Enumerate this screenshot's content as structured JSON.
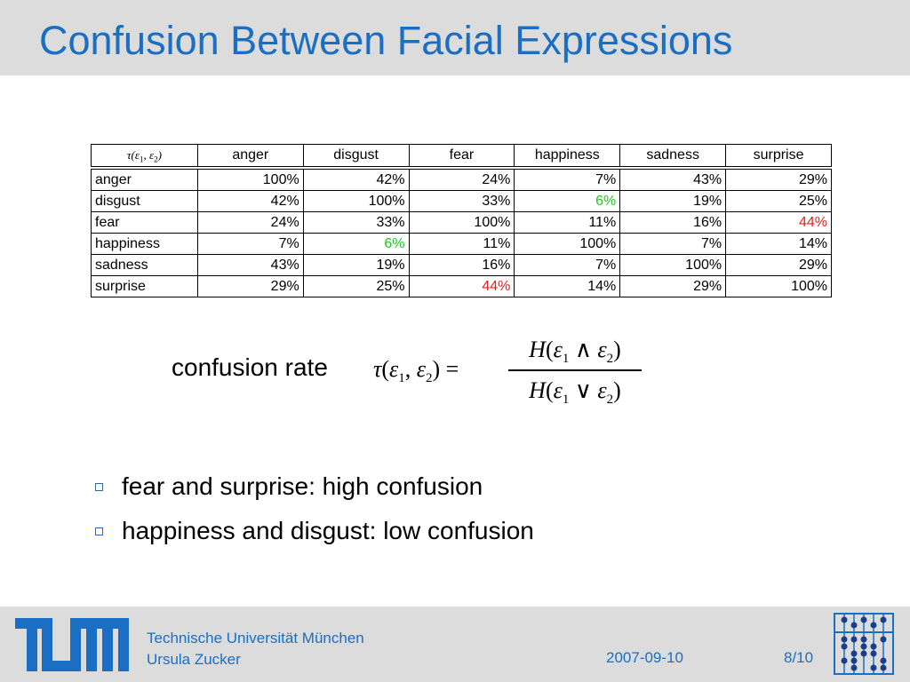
{
  "slide": {
    "title": "Confusion Between Facial Expressions"
  },
  "table": {
    "corner": "τ(ε1, ε2)",
    "columns": [
      "anger",
      "disgust",
      "fear",
      "happiness",
      "sadness",
      "surprise"
    ],
    "rows": [
      {
        "label": "anger",
        "cells": [
          "100%",
          "42%",
          "24%",
          "7%",
          "43%",
          "29%"
        ]
      },
      {
        "label": "disgust",
        "cells": [
          "42%",
          "100%",
          "33%",
          "6%",
          "19%",
          "25%"
        ]
      },
      {
        "label": "fear",
        "cells": [
          "24%",
          "33%",
          "100%",
          "11%",
          "16%",
          "44%"
        ]
      },
      {
        "label": "happiness",
        "cells": [
          "7%",
          "6%",
          "11%",
          "100%",
          "7%",
          "14%"
        ]
      },
      {
        "label": "sadness",
        "cells": [
          "43%",
          "19%",
          "16%",
          "7%",
          "100%",
          "29%"
        ]
      },
      {
        "label": "surprise",
        "cells": [
          "29%",
          "25%",
          "44%",
          "14%",
          "29%",
          "100%"
        ]
      }
    ],
    "colors": {
      "high_confusion": "#e8201a",
      "low_confusion": "#22c622"
    }
  },
  "formula": {
    "label": "confusion rate",
    "lhs": "τ(ε1, ε2) =",
    "numerator": "H(ε1 ∧ ε2)",
    "denominator": "H(ε1 ∨ ε2)"
  },
  "bullets": [
    "fear and surprise: high confusion",
    "happiness and disgust: low confusion"
  ],
  "footer": {
    "institution": "Technische Universität München",
    "author": "Ursula Zucker",
    "date": "2007-09-10",
    "page": "8/10"
  },
  "theme": {
    "accent": "#1a6fc4",
    "band": "#dcdcdc"
  },
  "icons": [
    "tum-logo",
    "abacus-logo",
    "square-bullet-icon"
  ]
}
